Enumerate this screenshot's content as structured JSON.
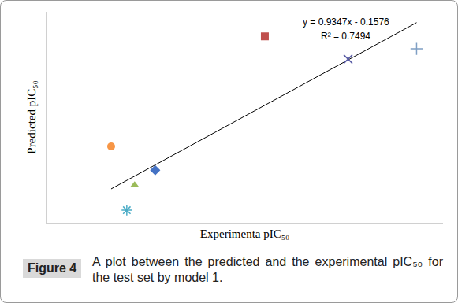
{
  "chart_data": {
    "type": "scatter",
    "x_label": "Experimenta pIC₅₀",
    "y_label": "Predicted pIC₅₀",
    "xlim": [
      3.3,
      7.35
    ],
    "ylim": [
      2.95,
      6.65
    ],
    "tick_labels": false,
    "grid": false,
    "series": [
      {
        "x": [
          3.96
        ],
        "values": [
          4.29
        ],
        "color": "#f79646",
        "marker": "circle"
      },
      {
        "x": [
          4.2
        ],
        "values": [
          3.61
        ],
        "color": "#9bbb59",
        "marker": "triangle"
      },
      {
        "x": [
          4.12
        ],
        "values": [
          3.17
        ],
        "color": "#4bacc6",
        "marker": "asterisk"
      },
      {
        "x": [
          4.41
        ],
        "values": [
          3.87
        ],
        "color": "#4472c4",
        "marker": "diamond"
      },
      {
        "x": [
          5.53
        ],
        "values": [
          6.22
        ],
        "color": "#c0504d",
        "marker": "square"
      },
      {
        "x": [
          6.38
        ],
        "values": [
          5.82
        ],
        "color": "#5b5ea6",
        "marker": "x"
      },
      {
        "x": [
          7.08
        ],
        "values": [
          6.0
        ],
        "color": "#7f9fc4",
        "marker": "cross"
      }
    ],
    "trendline": {
      "slope": 0.9347,
      "intercept": -0.1576,
      "color": "#000000"
    },
    "annotations": [
      "y = 0.9347x - 0.1576",
      "R² = 0.7494"
    ],
    "caption": {
      "label": "Figure 4",
      "text": "A plot between the predicted and the experimental pIC₅₀ for the test set by model 1."
    }
  }
}
